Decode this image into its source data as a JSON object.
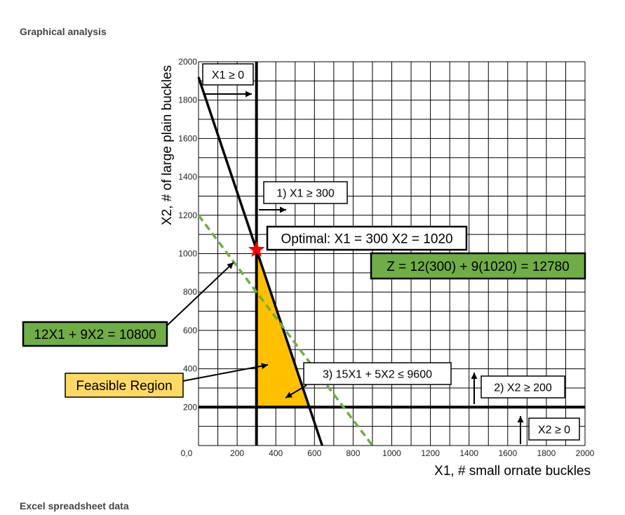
{
  "page": {
    "heading_top": "Graphical analysis",
    "heading_bottom": "Excel spreadsheet data"
  },
  "colors": {
    "feasible_fill": "#FFC000",
    "objective_line": "#70AD47",
    "green_box": "#70AD47",
    "yellow_box": "#FFD966",
    "optimal_star": "#FF0000"
  },
  "chart_data": {
    "type": "line",
    "xlabel": "X1, # small ornate buckles",
    "ylabel": "X2, # of large plain buckles",
    "xlim": [
      0,
      2000
    ],
    "ylim": [
      0,
      2000
    ],
    "grid": true,
    "grid_step": 100,
    "x_ticks": [
      {
        "value": 0,
        "label": "0,0"
      },
      {
        "value": 200,
        "label": "200"
      },
      {
        "value": 400,
        "label": "400"
      },
      {
        "value": 600,
        "label": "600"
      },
      {
        "value": 800,
        "label": "800"
      },
      {
        "value": 1000,
        "label": "1000"
      },
      {
        "value": 1200,
        "label": "1200"
      },
      {
        "value": 1400,
        "label": "1400"
      },
      {
        "value": 1600,
        "label": "1600"
      },
      {
        "value": 1800,
        "label": "1800"
      },
      {
        "value": 2000,
        "label": "2000"
      }
    ],
    "y_ticks": [
      {
        "value": 200,
        "label": "200"
      },
      {
        "value": 400,
        "label": "400"
      },
      {
        "value": 600,
        "label": "600"
      },
      {
        "value": 800,
        "label": "800"
      },
      {
        "value": 1000,
        "label": "1000"
      },
      {
        "value": 1200,
        "label": "1200"
      },
      {
        "value": 1400,
        "label": "1400"
      },
      {
        "value": 1600,
        "label": "1600"
      },
      {
        "value": 1800,
        "label": "1800"
      },
      {
        "value": 2000,
        "label": "2000"
      }
    ],
    "constraints": [
      {
        "label": "1) X1 ≥ 300",
        "line": [
          [
            300,
            0
          ],
          [
            300,
            2000
          ]
        ]
      },
      {
        "label": "2) X2 ≥ 200",
        "line": [
          [
            0,
            200
          ],
          [
            2000,
            200
          ]
        ]
      },
      {
        "label": "3) 15X1 + 5X2 ≤ 9600",
        "line": [
          [
            0,
            1920
          ],
          [
            640,
            0
          ]
        ]
      },
      {
        "label": "X1 ≥ 0"
      },
      {
        "label": "X2 ≥ 0"
      }
    ],
    "objective": {
      "label": "12X1 + 9X2 = 10800",
      "line": [
        [
          0,
          1200
        ],
        [
          900,
          0
        ]
      ]
    },
    "feasible_region": {
      "label": "Feasible Region",
      "polygon": [
        [
          300,
          1020
        ],
        [
          300,
          200
        ],
        [
          573.33,
          200
        ]
      ]
    },
    "optimal": {
      "label": "Optimal: X1 = 300 X2 = 1020",
      "x": 300,
      "y": 1020
    },
    "objective_value": {
      "label": "Z = 12(300) + 9(1020) = 12780"
    }
  }
}
